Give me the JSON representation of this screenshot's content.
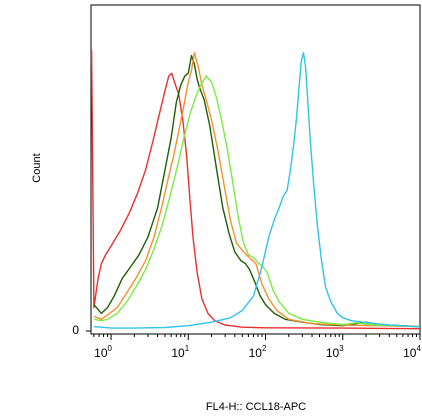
{
  "chart_data": {
    "type": "line",
    "title": "",
    "xlabel": "FL4-H:: CCL18-APC",
    "ylabel": "Count",
    "x_scale": "log",
    "xlim": [
      0.55,
      10000
    ],
    "ylim": [
      0,
      100
    ],
    "y_ticks": [
      {
        "value": 0,
        "label": "0"
      }
    ],
    "x_ticks": [
      {
        "value": 1,
        "base": "10",
        "exp": "0"
      },
      {
        "value": 10,
        "base": "10",
        "exp": "1"
      },
      {
        "value": 100,
        "base": "10",
        "exp": "2"
      },
      {
        "value": 1000,
        "base": "10",
        "exp": "3"
      },
      {
        "value": 10000,
        "base": "10",
        "exp": "4"
      }
    ],
    "grid": false,
    "legend": "none",
    "series": [
      {
        "color": "#e8302e",
        "points": [
          [
            0.56,
            96
          ],
          [
            0.6,
            8
          ],
          [
            0.68,
            18
          ],
          [
            0.75,
            23
          ],
          [
            0.85,
            26
          ],
          [
            1.0,
            29
          ],
          [
            1.3,
            34
          ],
          [
            1.7,
            40
          ],
          [
            2.2,
            47
          ],
          [
            2.8,
            55
          ],
          [
            3.5,
            65
          ],
          [
            4.3,
            75
          ],
          [
            5.0,
            82
          ],
          [
            5.6,
            87
          ],
          [
            6.1,
            88
          ],
          [
            6.8,
            84
          ],
          [
            7.5,
            81
          ],
          [
            8.5,
            72
          ],
          [
            9.5,
            60
          ],
          [
            10.5,
            45
          ],
          [
            11.5,
            32
          ],
          [
            13,
            20
          ],
          [
            15,
            11
          ],
          [
            18,
            6
          ],
          [
            22,
            3.5
          ],
          [
            30,
            2
          ],
          [
            50,
            1.3
          ],
          [
            100,
            1.1
          ],
          [
            1000,
            1
          ],
          [
            10000,
            0.8
          ]
        ]
      },
      {
        "color": "#1e5f08",
        "points": [
          [
            0.6,
            9
          ],
          [
            0.75,
            6
          ],
          [
            0.9,
            8
          ],
          [
            1.1,
            12
          ],
          [
            1.4,
            18
          ],
          [
            1.8,
            22
          ],
          [
            2.3,
            26
          ],
          [
            3.0,
            32
          ],
          [
            4.0,
            42
          ],
          [
            5.0,
            55
          ],
          [
            6.0,
            66
          ],
          [
            7.0,
            78
          ],
          [
            8.0,
            84
          ],
          [
            9.0,
            87
          ],
          [
            10,
            88
          ],
          [
            11,
            94
          ],
          [
            12,
            91
          ],
          [
            13,
            86
          ],
          [
            14,
            83
          ],
          [
            16,
            79
          ],
          [
            19,
            70
          ],
          [
            23,
            56
          ],
          [
            28,
            42
          ],
          [
            34,
            33
          ],
          [
            40,
            27
          ],
          [
            48,
            24
          ],
          [
            55,
            23
          ],
          [
            62,
            21
          ],
          [
            72,
            17
          ],
          [
            85,
            12
          ],
          [
            100,
            9
          ],
          [
            130,
            6
          ],
          [
            180,
            4
          ],
          [
            300,
            3
          ],
          [
            500,
            2.2
          ],
          [
            1000,
            1.8
          ],
          [
            2000,
            3
          ],
          [
            3000,
            2.2
          ],
          [
            10000,
            1.5
          ]
        ]
      },
      {
        "color": "#f59030",
        "points": [
          [
            0.6,
            5
          ],
          [
            0.75,
            4
          ],
          [
            0.9,
            5.5
          ],
          [
            1.2,
            8
          ],
          [
            1.6,
            13
          ],
          [
            2.1,
            18
          ],
          [
            2.8,
            24
          ],
          [
            3.6,
            32
          ],
          [
            4.5,
            42
          ],
          [
            5.5,
            52
          ],
          [
            6.5,
            60
          ],
          [
            7.5,
            68
          ],
          [
            8.5,
            75
          ],
          [
            10,
            85
          ],
          [
            11,
            89
          ],
          [
            12,
            95
          ],
          [
            13.5,
            90
          ],
          [
            15,
            84
          ],
          [
            17,
            79
          ],
          [
            20,
            72
          ],
          [
            24,
            62
          ],
          [
            29,
            50
          ],
          [
            35,
            38
          ],
          [
            42,
            30
          ],
          [
            52,
            27
          ],
          [
            62,
            25
          ],
          [
            75,
            23
          ],
          [
            90,
            16
          ],
          [
            110,
            11
          ],
          [
            140,
            7
          ],
          [
            200,
            4
          ],
          [
            400,
            2.5
          ],
          [
            1000,
            2
          ],
          [
            10000,
            1.5
          ]
        ]
      },
      {
        "color": "#7eea44",
        "points": [
          [
            0.6,
            4
          ],
          [
            0.75,
            3.5
          ],
          [
            0.9,
            4
          ],
          [
            1.2,
            6
          ],
          [
            1.6,
            10
          ],
          [
            2.1,
            15
          ],
          [
            2.8,
            21
          ],
          [
            3.6,
            28
          ],
          [
            4.6,
            36
          ],
          [
            5.8,
            46
          ],
          [
            7.2,
            56
          ],
          [
            8.8,
            66
          ],
          [
            10.5,
            74
          ],
          [
            12.5,
            80
          ],
          [
            14.5,
            84
          ],
          [
            17,
            87
          ],
          [
            20,
            85
          ],
          [
            23,
            80
          ],
          [
            27,
            72
          ],
          [
            32,
            62
          ],
          [
            38,
            50
          ],
          [
            45,
            38
          ],
          [
            52,
            30
          ],
          [
            60,
            26
          ],
          [
            70,
            25
          ],
          [
            82,
            23
          ],
          [
            92,
            22
          ],
          [
            105,
            20
          ],
          [
            125,
            14
          ],
          [
            150,
            10
          ],
          [
            200,
            6
          ],
          [
            300,
            4
          ],
          [
            500,
            3
          ],
          [
            1000,
            2.2
          ],
          [
            1500,
            2.8
          ],
          [
            2500,
            2
          ],
          [
            10000,
            1.5
          ]
        ]
      },
      {
        "color": "#31c3ed",
        "points": [
          [
            0.6,
            1.5
          ],
          [
            1,
            1
          ],
          [
            2,
            1
          ],
          [
            5,
            1.2
          ],
          [
            10,
            1.8
          ],
          [
            20,
            3
          ],
          [
            35,
            4.5
          ],
          [
            50,
            7
          ],
          [
            70,
            12
          ],
          [
            90,
            22
          ],
          [
            110,
            32
          ],
          [
            130,
            38
          ],
          [
            150,
            42
          ],
          [
            170,
            46
          ],
          [
            190,
            48
          ],
          [
            210,
            55
          ],
          [
            230,
            63
          ],
          [
            250,
            72
          ],
          [
            270,
            82
          ],
          [
            290,
            92
          ],
          [
            310,
            95
          ],
          [
            330,
            90
          ],
          [
            350,
            80
          ],
          [
            380,
            65
          ],
          [
            420,
            50
          ],
          [
            470,
            36
          ],
          [
            530,
            24
          ],
          [
            600,
            15
          ],
          [
            700,
            10
          ],
          [
            850,
            6
          ],
          [
            1000,
            4.5
          ],
          [
            1300,
            3.5
          ],
          [
            1800,
            3
          ],
          [
            2500,
            2.6
          ],
          [
            4000,
            2
          ],
          [
            10000,
            1.4
          ]
        ]
      }
    ]
  }
}
